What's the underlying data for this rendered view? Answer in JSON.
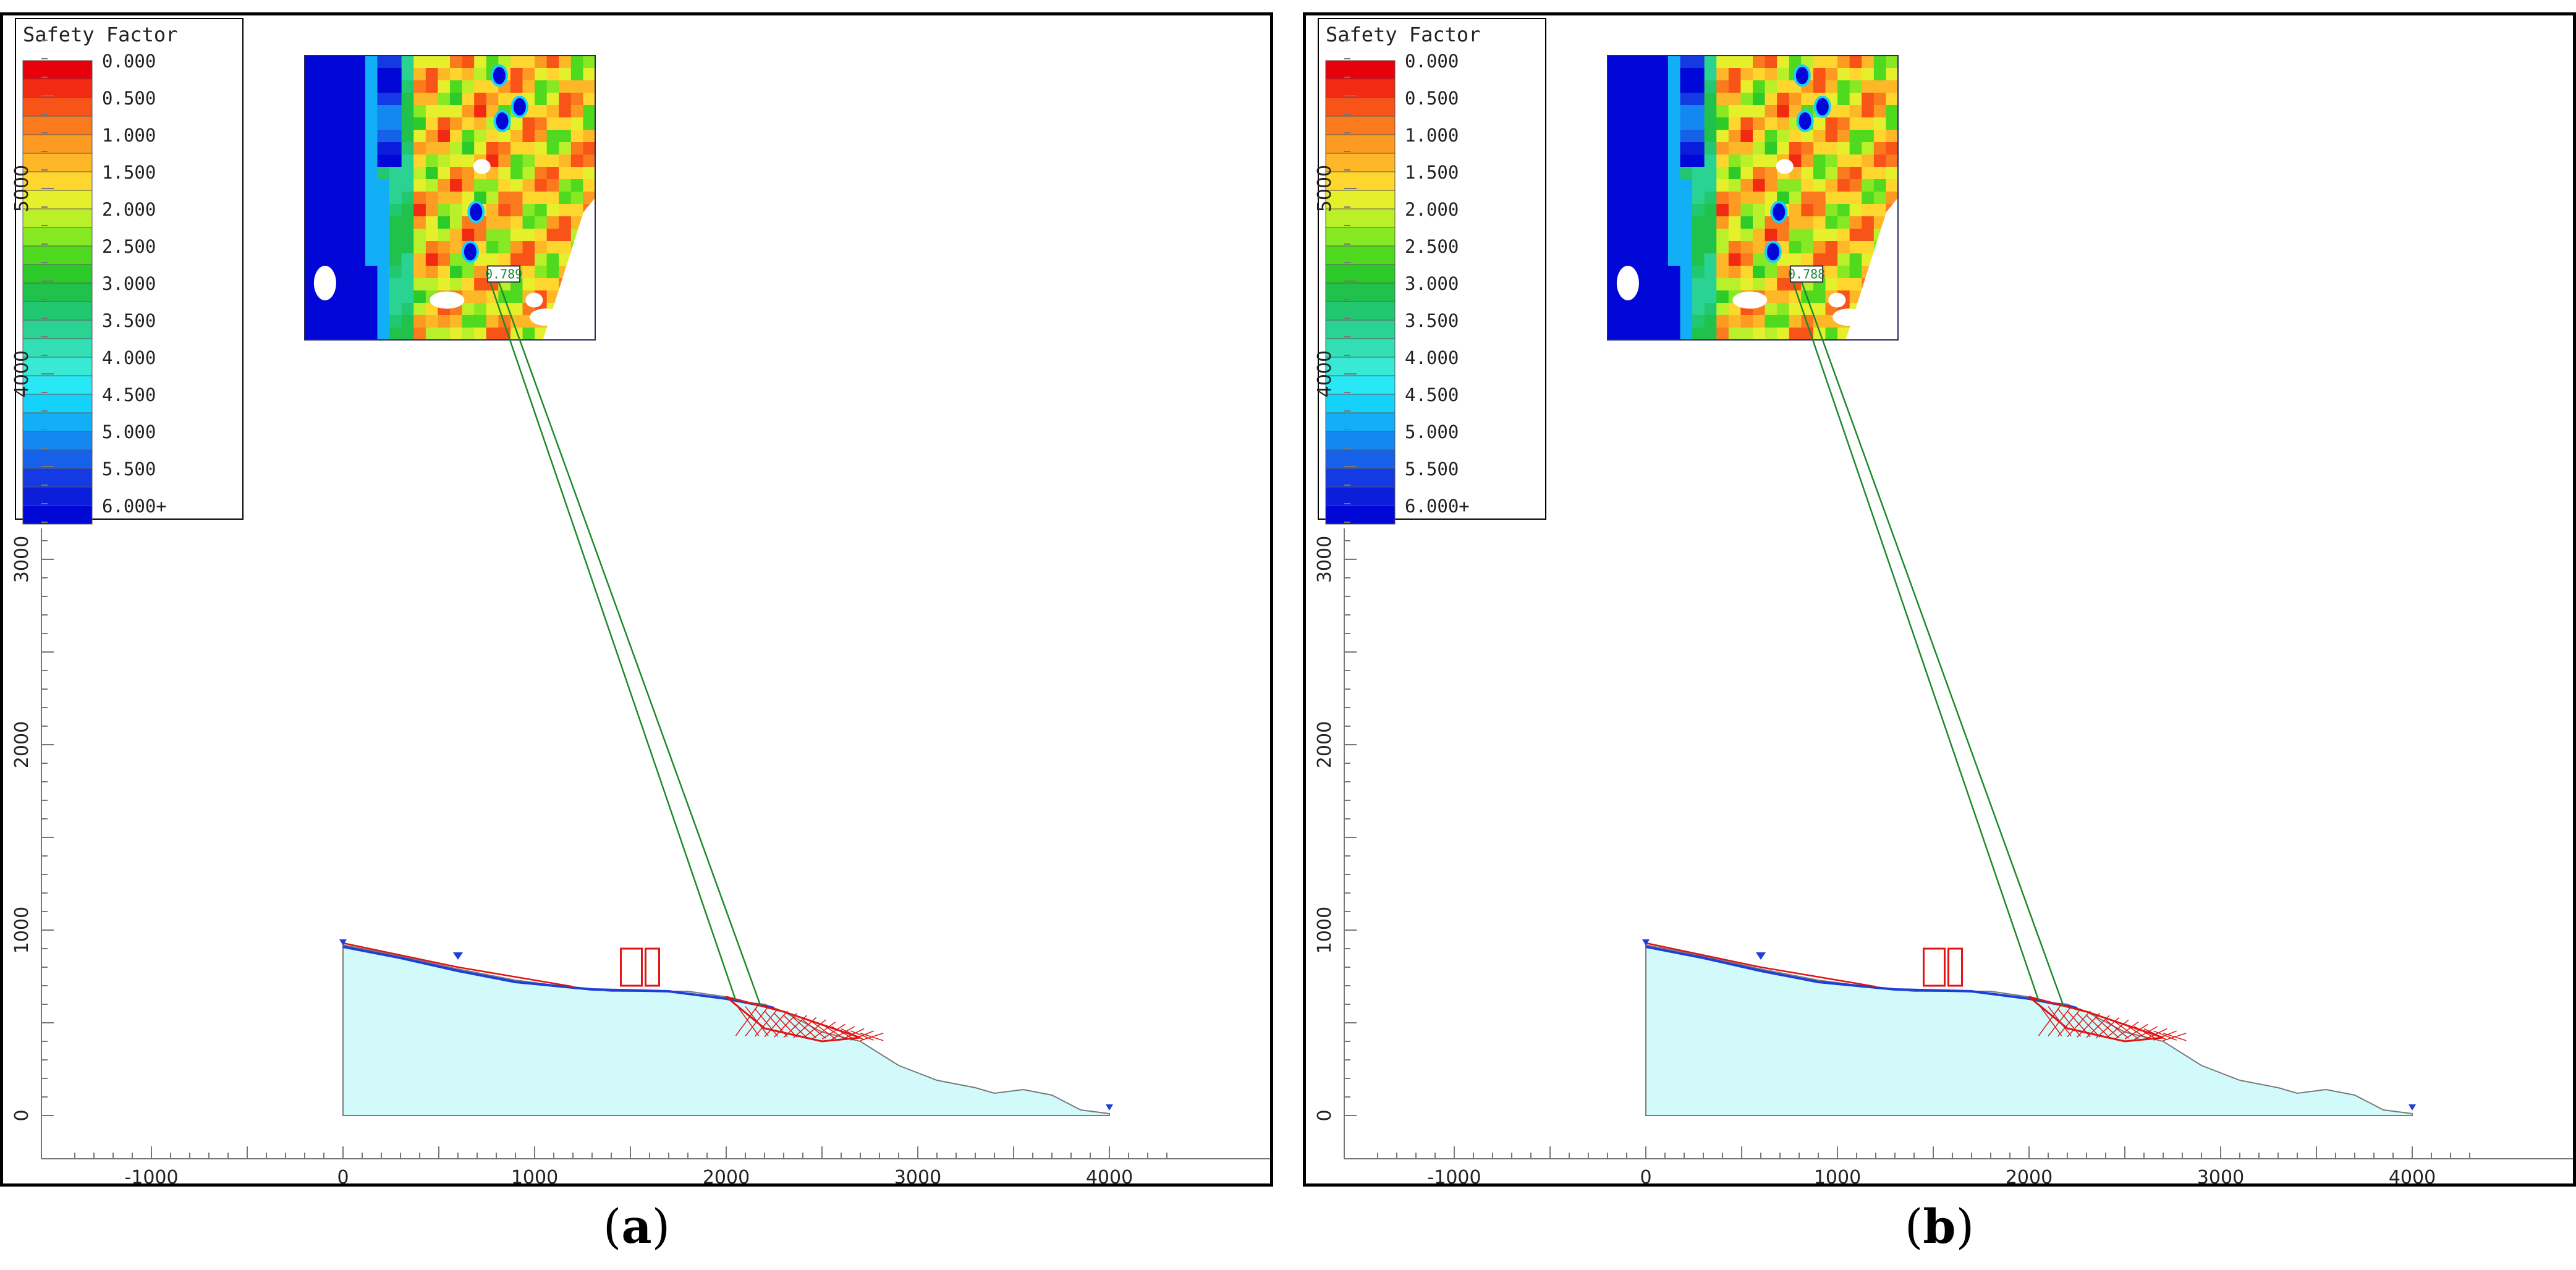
{
  "legend": {
    "title": "Safety Factor",
    "entries": [
      {
        "label": "0.000",
        "color": "#e8000b"
      },
      {
        "label": "",
        "color": "#f22a12"
      },
      {
        "label": "0.500",
        "color": "#f95418"
      },
      {
        "label": "",
        "color": "#fb7a1d"
      },
      {
        "label": "1.000",
        "color": "#fc9a22"
      },
      {
        "label": "",
        "color": "#fdb727"
      },
      {
        "label": "1.500",
        "color": "#ffd62d"
      },
      {
        "label": "",
        "color": "#e6ef2c"
      },
      {
        "label": "2.000",
        "color": "#b9f02a"
      },
      {
        "label": "",
        "color": "#86e923"
      },
      {
        "label": "2.500",
        "color": "#4fd91f"
      },
      {
        "label": "",
        "color": "#2dcb2a"
      },
      {
        "label": "3.000",
        "color": "#20c24b"
      },
      {
        "label": "",
        "color": "#22c86f"
      },
      {
        "label": "3.500",
        "color": "#2bd393"
      },
      {
        "label": "",
        "color": "#33dfb5"
      },
      {
        "label": "4.000",
        "color": "#38e9d5"
      },
      {
        "label": "",
        "color": "#27e8f4"
      },
      {
        "label": "4.500",
        "color": "#14d2fb"
      },
      {
        "label": "",
        "color": "#12aef7"
      },
      {
        "label": "5.000",
        "color": "#1487f1"
      },
      {
        "label": "",
        "color": "#1561ea"
      },
      {
        "label": "5.500",
        "color": "#143be3"
      },
      {
        "label": "",
        "color": "#0b1edc"
      },
      {
        "label": "6.000+",
        "color": "#0007d6"
      }
    ]
  },
  "axes": {
    "x_ticks": [
      "-1000",
      "0",
      "1000",
      "2000",
      "3000",
      "4000"
    ],
    "y_ticks": [
      "0",
      "1000",
      "2000",
      "3000",
      "4000",
      "5000"
    ]
  },
  "panels": [
    {
      "caption_open": "(",
      "caption_letter": "a",
      "caption_close": ")",
      "callout_value": "0.789"
    },
    {
      "caption_open": "(",
      "caption_letter": "b",
      "caption_close": ")",
      "callout_value": "0.788"
    }
  ]
}
